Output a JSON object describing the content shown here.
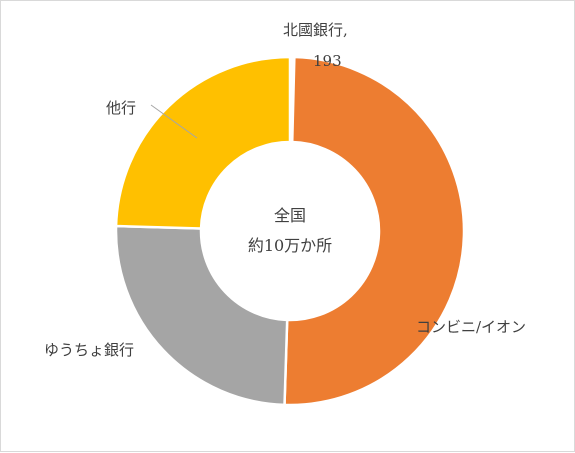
{
  "chart_data": {
    "type": "pie",
    "donut": true,
    "center_text": [
      "全国",
      "約10万か所"
    ],
    "categories": [
      "北國銀行",
      "コンビニ/イオン",
      "ゆうちょ銀行",
      "他行"
    ],
    "values": [
      193,
      49600,
      24700,
      24300
    ],
    "colors": [
      "#ffffff",
      "#ed7d31",
      "#a5a5a5",
      "#ffc000"
    ],
    "data_labels": {
      "hokkoku_name": "北國銀行,",
      "hokkoku_value": "193",
      "conveni": "コンビニ/イオン",
      "yucho": "ゆうちょ銀行",
      "other": "他行"
    },
    "legend": "none"
  }
}
